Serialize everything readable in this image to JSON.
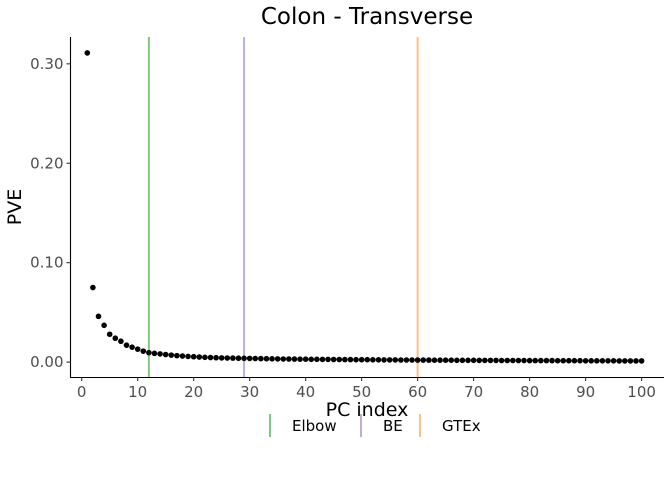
{
  "chart_data": {
    "type": "scatter",
    "title": "Colon - Transverse",
    "xlabel": "PC index",
    "ylabel": "PVE",
    "xlim": [
      -2,
      104
    ],
    "ylim": [
      -0.015,
      0.327
    ],
    "x_ticks": [
      0,
      10,
      20,
      30,
      40,
      50,
      60,
      70,
      80,
      90,
      100
    ],
    "x_tick_labels": [
      "0",
      "10",
      "20",
      "30",
      "40",
      "50",
      "60",
      "70",
      "80",
      "90",
      "100"
    ],
    "y_ticks": [
      0,
      0.1,
      0.2,
      0.3
    ],
    "y_tick_labels": [
      "0.00",
      "0.10",
      "0.20",
      "0.30"
    ],
    "grid": false,
    "legend_position": "bottom",
    "series": [
      {
        "color": "#000000",
        "x": [
          1,
          2,
          3,
          4,
          5,
          6,
          7,
          8,
          9,
          10,
          11,
          12,
          13,
          14,
          15,
          16,
          17,
          18,
          19,
          20,
          21,
          22,
          23,
          24,
          25,
          26,
          27,
          28,
          29,
          30,
          31,
          32,
          33,
          34,
          35,
          36,
          37,
          38,
          39,
          40,
          41,
          42,
          43,
          44,
          45,
          46,
          47,
          48,
          49,
          50,
          51,
          52,
          53,
          54,
          55,
          56,
          57,
          58,
          59,
          60,
          61,
          62,
          63,
          64,
          65,
          66,
          67,
          68,
          69,
          70,
          71,
          72,
          73,
          74,
          75,
          76,
          77,
          78,
          79,
          80,
          81,
          82,
          83,
          84,
          85,
          86,
          87,
          88,
          89,
          90,
          91,
          92,
          93,
          94,
          95,
          96,
          97,
          98,
          99,
          100
        ],
        "y": [
          0.311,
          0.075,
          0.046,
          0.037,
          0.028,
          0.024,
          0.021,
          0.017,
          0.015,
          0.013,
          0.011,
          0.0095,
          0.0088,
          0.0082,
          0.0076,
          0.007,
          0.0065,
          0.0061,
          0.0057,
          0.0054,
          0.0051,
          0.0048,
          0.0046,
          0.0044,
          0.0042,
          0.0041,
          0.004,
          0.0039,
          0.0038,
          0.0037,
          0.0036,
          0.0035,
          0.0034,
          0.0033,
          0.0032,
          0.0031,
          0.0031,
          0.003,
          0.0029,
          0.0029,
          0.0028,
          0.0028,
          0.0027,
          0.0027,
          0.0026,
          0.0026,
          0.0025,
          0.0025,
          0.0024,
          0.0024,
          0.0024,
          0.0023,
          0.0023,
          0.0022,
          0.0022,
          0.0022,
          0.0021,
          0.0021,
          0.0021,
          0.002,
          0.002,
          0.002,
          0.0019,
          0.0019,
          0.0019,
          0.0019,
          0.0018,
          0.0018,
          0.0018,
          0.0018,
          0.0017,
          0.0017,
          0.0017,
          0.0017,
          0.0016,
          0.0016,
          0.0016,
          0.0016,
          0.0016,
          0.0015,
          0.0015,
          0.0015,
          0.0015,
          0.0015,
          0.0014,
          0.0014,
          0.0014,
          0.0014,
          0.0014,
          0.0013,
          0.0013,
          0.0013,
          0.0013,
          0.0013,
          0.0013,
          0.0012,
          0.0012,
          0.0012,
          0.0012,
          0.0012
        ]
      }
    ],
    "vlines": [
      {
        "name": "Elbow",
        "x": 12,
        "color": "#7fc97f"
      },
      {
        "name": "BE",
        "x": 29,
        "color": "#beaed4"
      },
      {
        "name": "GTEx",
        "x": 60,
        "color": "#fdc086"
      }
    ]
  }
}
